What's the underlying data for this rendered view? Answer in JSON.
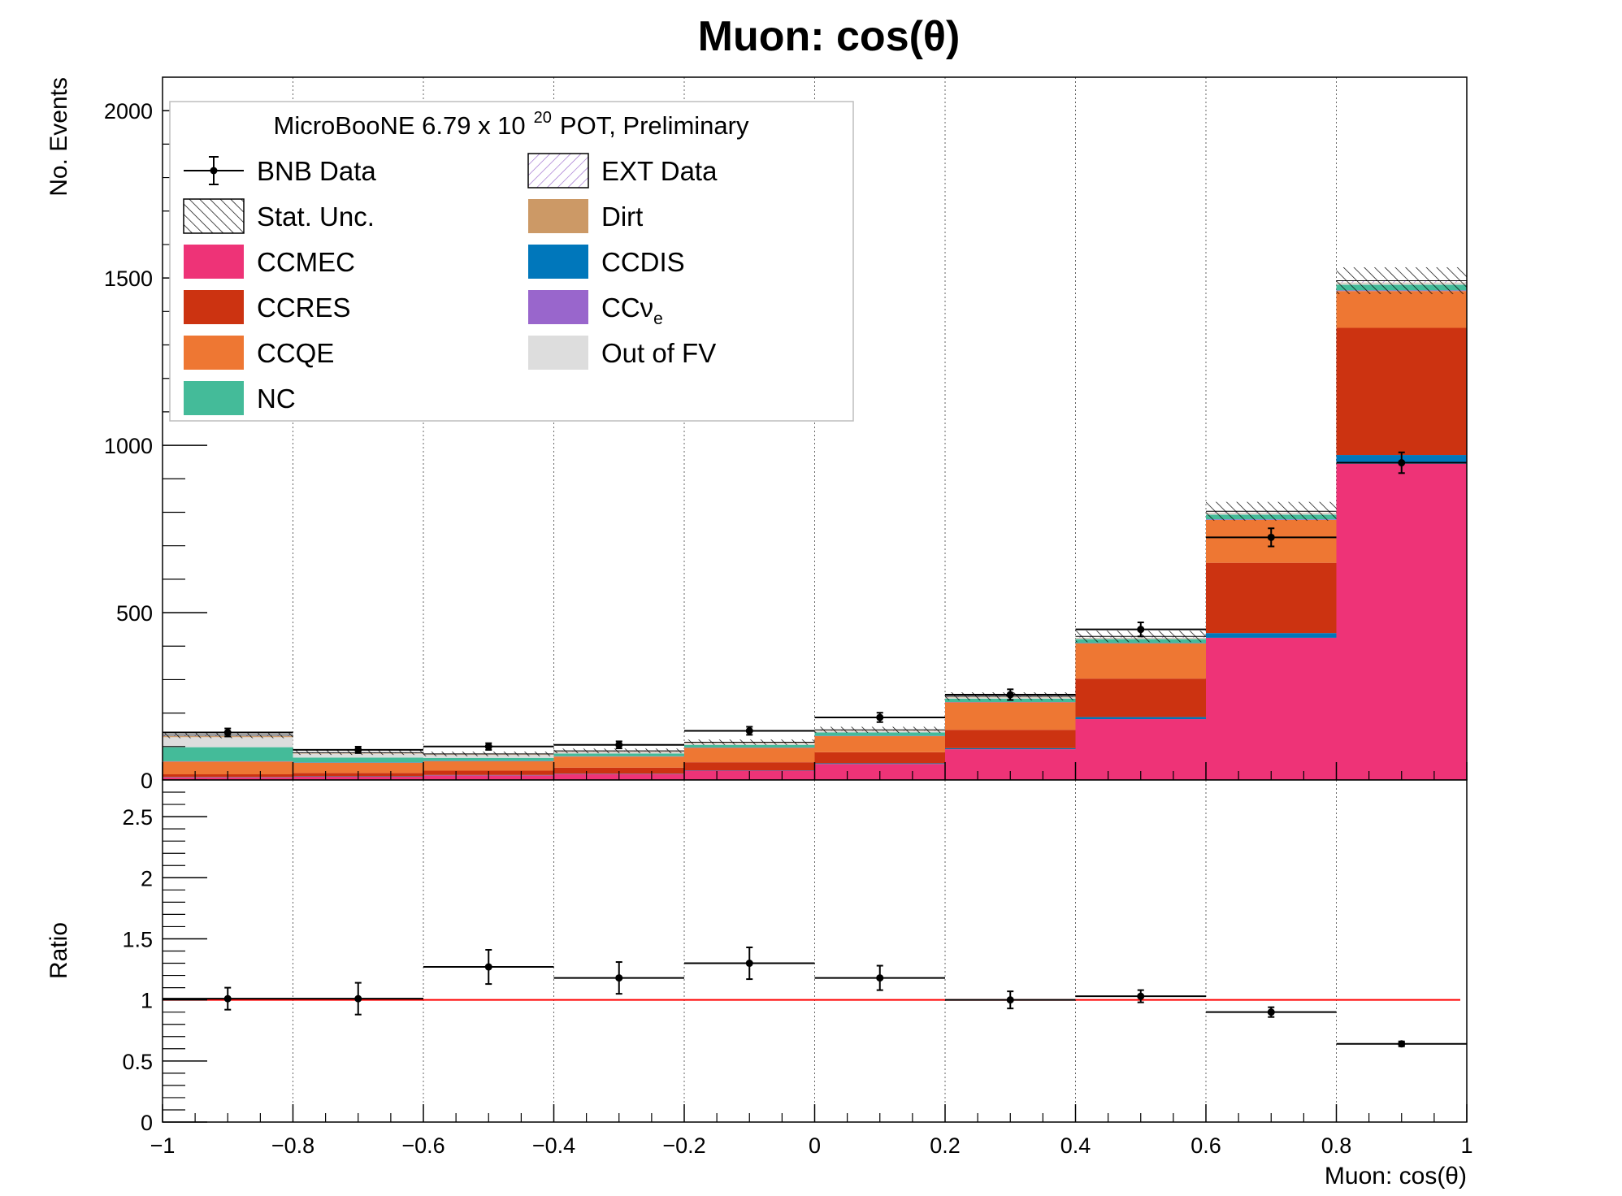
{
  "chart_data": [
    {
      "type": "bar",
      "stacked": true,
      "title": "Muon: cos(θ)",
      "ylabel": "No. Events",
      "xlim": [
        -1,
        1
      ],
      "ylim": [
        0,
        2100
      ],
      "x_ticks": [
        "−1",
        "−0.8",
        "−0.6",
        "−0.4",
        "−0.2",
        "0",
        "0.2",
        "0.4",
        "0.6",
        "0.8",
        "1"
      ],
      "y_ticks": [
        "0",
        "500",
        "1000",
        "1500",
        "2000"
      ],
      "bins": [
        [
          -1,
          -0.8
        ],
        [
          -0.8,
          -0.6
        ],
        [
          -0.6,
          -0.4
        ],
        [
          -0.4,
          -0.2
        ],
        [
          -0.2,
          0
        ],
        [
          0,
          0.2
        ],
        [
          0.2,
          0.4
        ],
        [
          0.4,
          0.6
        ],
        [
          0.6,
          0.8
        ],
        [
          0.8,
          1
        ]
      ],
      "grid": "vertical dotted",
      "legend_placement": "top-left",
      "legend_header": {
        "pre": "MicroBooNE 6.79 x 10",
        "exp": "20",
        "post": "POT, Preliminary"
      },
      "legend": [
        {
          "key": "bnb",
          "label": "BNB Data",
          "sym": "data"
        },
        {
          "key": "ext",
          "label": "EXT Data",
          "sym": "ext"
        },
        {
          "key": "stat",
          "label": "Stat. Unc.",
          "sym": "hatch"
        },
        {
          "key": "dirt",
          "label": "Dirt",
          "sym": "fill"
        },
        {
          "key": "ccmec",
          "label": "CCMEC",
          "sym": "fill"
        },
        {
          "key": "ccdis",
          "label": "CCDIS",
          "sym": "fill"
        },
        {
          "key": "ccres",
          "label": "CCRES",
          "sym": "fill"
        },
        {
          "key": "ccnue",
          "label": "CCν",
          "sub": "e",
          "sym": "fill"
        },
        {
          "key": "ccqe",
          "label": "CCQE",
          "sym": "fill"
        },
        {
          "key": "oofv",
          "label": "Out of FV",
          "sym": "fill"
        },
        {
          "key": "nc",
          "label": "NC",
          "sym": "fill"
        }
      ],
      "colors": {
        "ccmec": "#ee3377",
        "ccdis": "#0077bb",
        "ccres": "#cc3311",
        "ccqe": "#ee7733",
        "ccnue": "#9966cc",
        "nc": "#44bb99",
        "oofv": "#dddddd",
        "dirt": "#cc9966",
        "ext": "#9966cc"
      },
      "stack_order": [
        "ccmec",
        "ccdis",
        "ccres",
        "ccqe",
        "ccnue",
        "nc",
        "oofv",
        "dirt",
        "ext"
      ],
      "series": [
        {
          "key": "ccmec",
          "values": [
            8,
            10,
            14,
            18,
            28,
            48,
            92,
            182,
            425,
            945
          ]
        },
        {
          "key": "ccdis",
          "values": [
            1,
            1,
            1,
            1,
            1,
            2,
            3,
            6,
            14,
            26
          ]
        },
        {
          "key": "ccres",
          "values": [
            8,
            10,
            13,
            18,
            24,
            33,
            55,
            115,
            210,
            380
          ]
        },
        {
          "key": "ccqe",
          "values": [
            38,
            30,
            28,
            33,
            43,
            48,
            82,
            105,
            128,
            110
          ]
        },
        {
          "key": "ccnue",
          "values": [
            1,
            1,
            1,
            1,
            1,
            1,
            1,
            1,
            2,
            2
          ]
        },
        {
          "key": "nc",
          "values": [
            42,
            15,
            9,
            8,
            8,
            10,
            10,
            12,
            14,
            17
          ]
        },
        {
          "key": "oofv",
          "values": [
            30,
            12,
            9,
            5,
            5,
            4,
            3,
            3,
            4,
            5
          ]
        },
        {
          "key": "dirt",
          "values": [
            3,
            1,
            1,
            1,
            1,
            1,
            1,
            1,
            1,
            1
          ]
        },
        {
          "key": "ext",
          "values": [
            3,
            2,
            2,
            2,
            2,
            3,
            3,
            4,
            5,
            6
          ]
        }
      ],
      "stat_unc": [
        9,
        7,
        7,
        7,
        8,
        9,
        12,
        17,
        28,
        40
      ],
      "data": {
        "name": "BNB Data",
        "y": [
          142,
          90,
          100,
          105,
          147,
          187,
          255,
          450,
          725,
          948
        ],
        "err": [
          12,
          9.5,
          10,
          10.5,
          12,
          14,
          16,
          21,
          27,
          31
        ]
      }
    },
    {
      "type": "scatter",
      "ylabel": "Ratio",
      "xlabel": "Muon: cos(θ)",
      "xlim": [
        -1,
        1
      ],
      "ylim": [
        0,
        2.8
      ],
      "y_ticks": [
        "0",
        "0.5",
        "1",
        "1.5",
        "2",
        "2.5"
      ],
      "reference_line": {
        "y": 1,
        "color": "#ff0000"
      },
      "bins": [
        [
          -1,
          -0.8
        ],
        [
          -0.8,
          -0.6
        ],
        [
          -0.6,
          -0.4
        ],
        [
          -0.4,
          -0.2
        ],
        [
          -0.2,
          0
        ],
        [
          0,
          0.2
        ],
        [
          0.2,
          0.4
        ],
        [
          0.4,
          0.6
        ],
        [
          0.6,
          0.8
        ],
        [
          0.8,
          1
        ]
      ],
      "ratio": [
        1.01,
        1.01,
        1.27,
        1.18,
        1.3,
        1.18,
        1.0,
        1.03,
        0.9,
        0.64
      ],
      "err": [
        0.09,
        0.13,
        0.14,
        0.13,
        0.13,
        0.1,
        0.07,
        0.05,
        0.04,
        0.02
      ]
    }
  ]
}
